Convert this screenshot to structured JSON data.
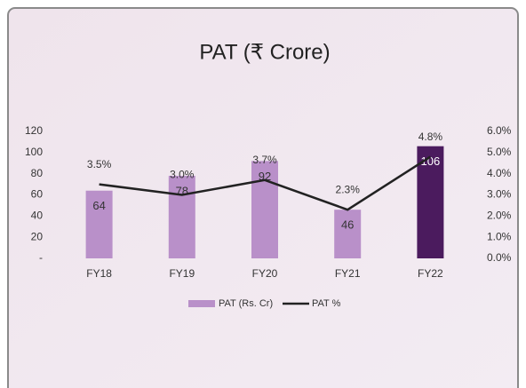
{
  "chart_data": {
    "type": "bar",
    "title": "PAT (₹ Crore)",
    "categories": [
      "FY18",
      "FY19",
      "FY20",
      "FY21",
      "FY22"
    ],
    "series": [
      {
        "name": "PAT (Rs. Cr)",
        "type": "bar",
        "color": "#b990c9",
        "colors": [
          "#b990c9",
          "#b990c9",
          "#b990c9",
          "#b990c9",
          "#4b1b5e"
        ],
        "values": [
          64,
          78,
          92,
          46,
          106
        ]
      },
      {
        "name": "PAT %",
        "type": "line",
        "axis": "y2",
        "color": "#222222",
        "values": [
          3.5,
          3.0,
          3.7,
          2.3,
          4.8
        ],
        "value_labels": [
          "3.5%",
          "3.0%",
          "3.7%",
          "2.3%",
          "4.8%"
        ]
      }
    ],
    "ylim": [
      0,
      120
    ],
    "yticks": [
      {
        "value": 0,
        "label": "-"
      },
      20,
      40,
      60,
      80,
      100,
      120
    ],
    "y2lim": [
      0,
      6
    ],
    "y2ticks": [
      {
        "value": 0,
        "label": "0.0%"
      },
      {
        "value": 1,
        "label": "1.0%"
      },
      {
        "value": 2,
        "label": "2.0%"
      },
      {
        "value": 3,
        "label": "3.0%"
      },
      {
        "value": 4,
        "label": "4.0%"
      },
      {
        "value": 5,
        "label": "5.0%"
      },
      {
        "value": 6,
        "label": "6.0%"
      }
    ],
    "legend": "bottom"
  }
}
